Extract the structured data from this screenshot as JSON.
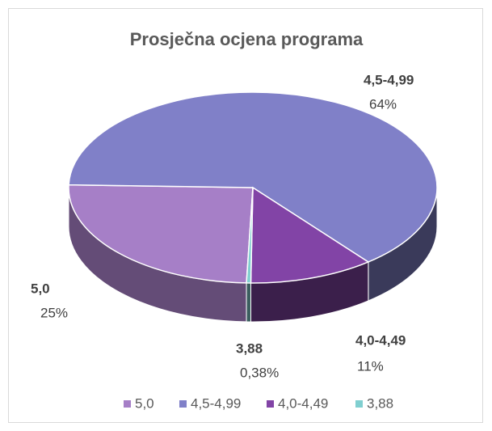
{
  "chart_data": {
    "type": "pie",
    "title": "Prosječna ocjena programa",
    "categories": [
      "5,0",
      "4,5-4,99",
      "4,0-4,49",
      "3,88"
    ],
    "values": [
      25,
      64,
      11,
      0.38
    ],
    "value_labels": [
      "25%",
      "64%",
      "11%",
      "0,38%"
    ],
    "colors": [
      "#a67fc7",
      "#8080c8",
      "#8244a6",
      "#80cfd0"
    ],
    "legend": "bottom"
  }
}
